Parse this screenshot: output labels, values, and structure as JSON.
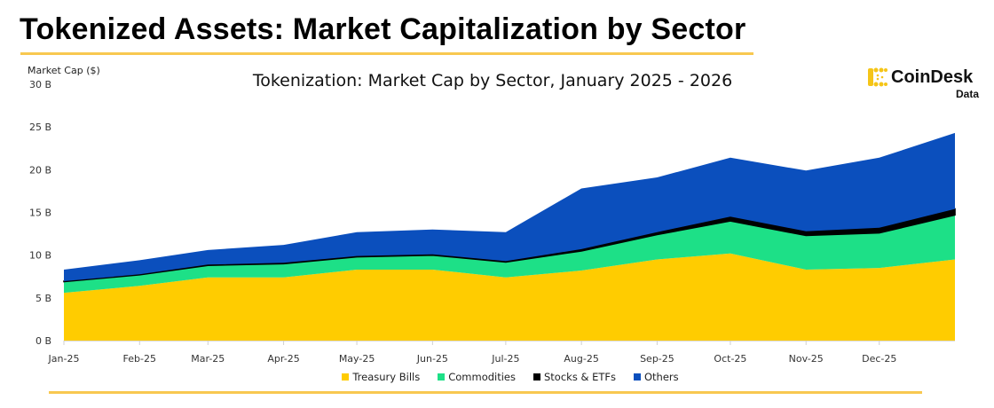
{
  "header": {
    "title": "Tokenized Assets: Market Capitalization by Sector"
  },
  "logo": {
    "brand": "CoinDesk",
    "sub": "Data",
    "icon": "coindesk-logo-icon",
    "color": "#f5c518"
  },
  "chart_data": {
    "type": "area",
    "stacked": true,
    "title": "Tokenization: Market Cap by Sector, January 2025 - 2026",
    "xlabel": "",
    "ylabel": "Market Cap ($)",
    "ylim": [
      0,
      30
    ],
    "y_unit": "B",
    "y_ticks": [
      "0 B",
      "5 B",
      "10 B",
      "15 B",
      "20 B",
      "25 B",
      "30 B"
    ],
    "y_tick_values": [
      0,
      5,
      10,
      15,
      20,
      25,
      30
    ],
    "categories": [
      "Jan-25",
      "Feb-25",
      "Mar-25",
      "Apr-25",
      "May-25",
      "Jun-25",
      "Jul-25",
      "Aug-25",
      "Sep-25",
      "Oct-25",
      "Nov-25",
      "Dec-25",
      ""
    ],
    "x_tick_labels": [
      "Jan-25",
      "Feb-25",
      "Mar-25",
      "Apr-25",
      "May-25",
      "Jun-25",
      "Jul-25",
      "Aug-25",
      "Sep-25",
      "Oct-25",
      "Nov-25",
      "Dec-25"
    ],
    "grid": false,
    "legend_position": "bottom-center",
    "series": [
      {
        "name": "Treasury Bills",
        "color": "#ffcc00",
        "values": [
          5.6,
          6.4,
          7.4,
          7.4,
          8.3,
          8.3,
          7.4,
          8.2,
          9.5,
          10.2,
          8.3,
          8.5,
          9.5
        ]
      },
      {
        "name": "Commodities",
        "color": "#1de087",
        "values": [
          1.3,
          1.3,
          1.4,
          1.6,
          1.5,
          1.7,
          1.8,
          2.3,
          2.9,
          3.8,
          4.0,
          4.1,
          5.2
        ]
      },
      {
        "name": "Stocks & ETFs",
        "color": "#000000",
        "values": [
          0.05,
          0.05,
          0.1,
          0.1,
          0.1,
          0.1,
          0.1,
          0.2,
          0.3,
          0.5,
          0.5,
          0.6,
          0.7
        ]
      },
      {
        "name": "Others",
        "color": "#0b4fbd",
        "values": [
          1.35,
          1.65,
          1.7,
          2.1,
          2.8,
          2.9,
          3.4,
          7.1,
          6.4,
          6.9,
          7.1,
          8.2,
          8.9
        ]
      }
    ]
  }
}
